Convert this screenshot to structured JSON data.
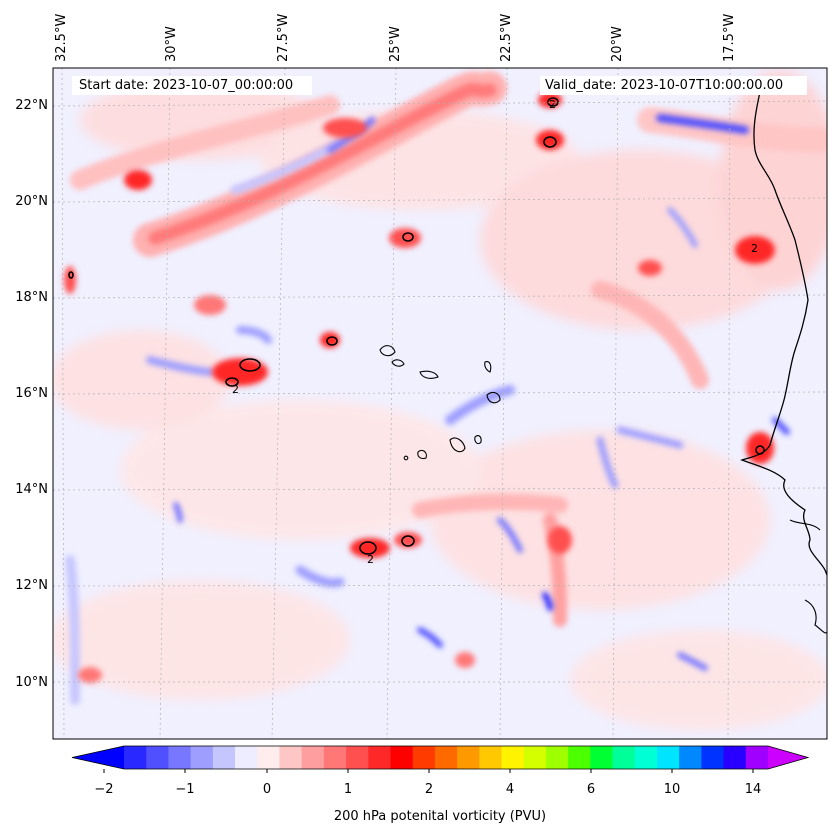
{
  "header": {
    "start_date": "Start date: 2023-10-07_00:00:00",
    "valid_date": "Valid_date: 2023-10-07T10:00:00.00"
  },
  "map": {
    "lon_labels": [
      "32.5°W",
      "30°W",
      "27.5°W",
      "25°W",
      "22.5°W",
      "20°W",
      "17.5°W"
    ],
    "lat_labels": [
      "22°N",
      "20°N",
      "18°N",
      "16°N",
      "14°N",
      "12°N",
      "10°N"
    ],
    "extent": {
      "lon_min": -33.5,
      "lon_max": -15.8,
      "lat_min": 8.9,
      "lat_max": 22.8
    },
    "contour_level_label": "2",
    "colors": {
      "background": "#f0f0ff",
      "coastline": "#000000",
      "gridline": "#b0b0b0"
    }
  },
  "colorbar": {
    "title": "200 hPa potenital vorticity (PVU)",
    "tick_labels": [
      "−2",
      "−1",
      "0",
      "1",
      "2",
      "4",
      "6",
      "10",
      "14"
    ],
    "colors": [
      "#0000ff",
      "#2828ff",
      "#5050ff",
      "#7777ff",
      "#9e9eff",
      "#c6c6ff",
      "#ededff",
      "#ffeded",
      "#ffc6c6",
      "#ff9e9e",
      "#ff7777",
      "#ff5050",
      "#ff2828",
      "#ff0000",
      "#ff3b00",
      "#ff6a00",
      "#ff9900",
      "#ffc800",
      "#fff300",
      "#d4ff00",
      "#9dff00",
      "#4cff00",
      "#00ff33",
      "#00ff99",
      "#00ffd5",
      "#00e5ff",
      "#0088ff",
      "#0033ff",
      "#2900ff",
      "#a000ff",
      "#cc00ff"
    ]
  }
}
